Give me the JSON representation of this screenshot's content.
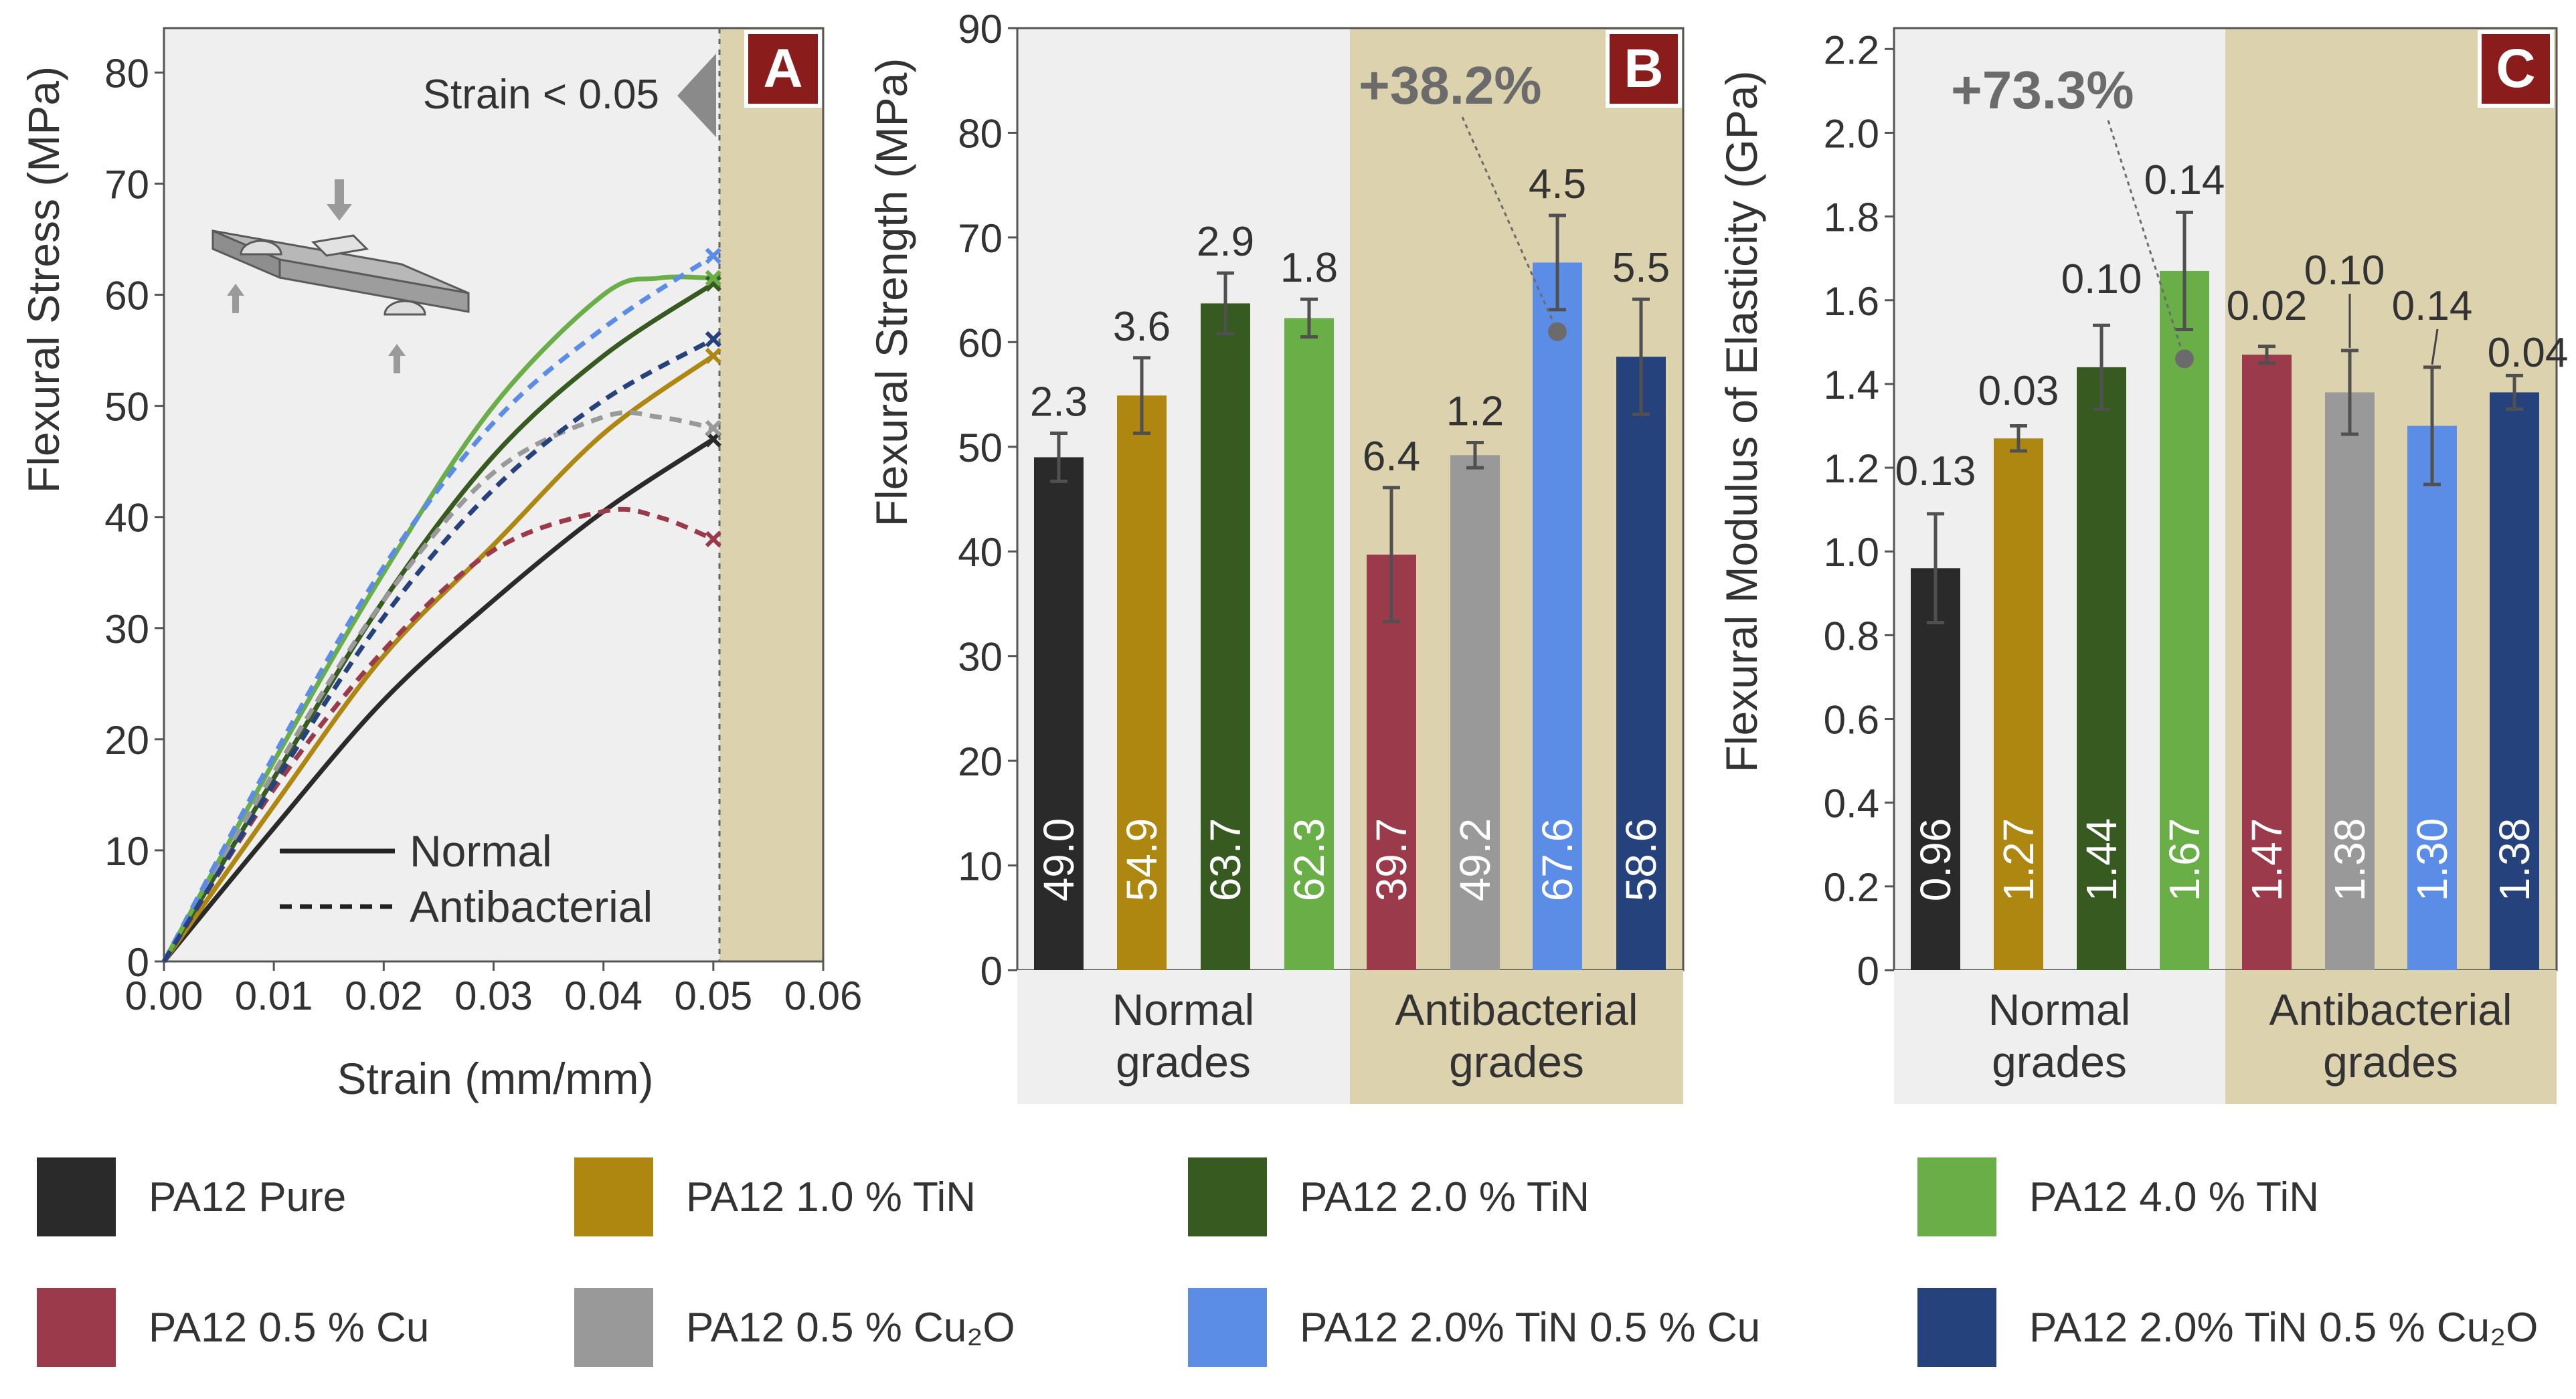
{
  "colors": {
    "pure": "#2a2a2a",
    "tin1": "#ad8710",
    "tin2": "#365a20",
    "tin4": "#6aae48",
    "cu": "#9b3a4a",
    "cu2o": "#999999",
    "tin2cu": "#5b8de6",
    "tin2cu2o": "#26427c",
    "axis": "#444444",
    "panel_bg": "#efefef",
    "antibacterial_bg": "#dcd3ae",
    "label_box": "#8b1c1c",
    "annotation": "#6b6b6b"
  },
  "legend": [
    {
      "label": "PA12 Pure",
      "color": "#2a2a2a"
    },
    {
      "label": "PA12 1.0 % TiN",
      "color": "#ad8710"
    },
    {
      "label": "PA12 2.0 % TiN",
      "color": "#365a20"
    },
    {
      "label": "PA12 4.0 % TiN",
      "color": "#6aae48"
    },
    {
      "label": "PA12 0.5 % Cu",
      "color": "#9b3a4a"
    },
    {
      "label": "PA12 0.5 % Cu₂O",
      "color": "#999999"
    },
    {
      "label": "PA12 2.0% TiN 0.5 % Cu",
      "color": "#5b8de6"
    },
    {
      "label": "PA12 2.0% TiN 0.5 % Cu₂O",
      "color": "#26427c"
    }
  ],
  "chart_data": [
    {
      "panel": "A",
      "type": "line",
      "xlabel": "Strain (mm/mm)",
      "ylabel": "Flexural Stress (MPa)",
      "xlim": [
        0,
        0.06
      ],
      "ylim": [
        0,
        84
      ],
      "xticks": [
        "0.00",
        "0.01",
        "0.02",
        "0.03",
        "0.04",
        "0.05",
        "0.06"
      ],
      "yticks": [
        "0",
        "10",
        "20",
        "30",
        "40",
        "50",
        "60",
        "70",
        "80"
      ],
      "annotation": "Strain < 0.05",
      "line_style_legend": [
        {
          "label": "Normal",
          "style": "solid"
        },
        {
          "label": "Antibacterial",
          "style": "dashed"
        }
      ],
      "series": [
        {
          "name": "PA12 Pure",
          "style": "solid",
          "color": "#2a2a2a",
          "x": [
            0,
            0.01,
            0.02,
            0.03,
            0.04,
            0.05
          ],
          "y": [
            0,
            12,
            23.5,
            32.5,
            40.5,
            47
          ]
        },
        {
          "name": "PA12 1.0 % TiN",
          "style": "solid",
          "color": "#ad8710",
          "x": [
            0,
            0.01,
            0.02,
            0.03,
            0.04,
            0.05
          ],
          "y": [
            0,
            14,
            27.5,
            37.5,
            47.5,
            54.5
          ]
        },
        {
          "name": "PA12 2.0 % TiN",
          "style": "solid",
          "color": "#365a20",
          "x": [
            0,
            0.01,
            0.02,
            0.03,
            0.04,
            0.05
          ],
          "y": [
            0,
            16.5,
            32.5,
            45.5,
            54.5,
            61
          ]
        },
        {
          "name": "PA12 4.0 % TiN",
          "style": "solid",
          "color": "#6aae48",
          "x": [
            0,
            0.01,
            0.02,
            0.03,
            0.04,
            0.045,
            0.05
          ],
          "y": [
            0,
            18,
            35,
            50,
            60,
            61.5,
            61.5
          ]
        },
        {
          "name": "PA12 0.5 % Cu",
          "style": "dashed",
          "color": "#9b3a4a",
          "x": [
            0,
            0.01,
            0.02,
            0.03,
            0.04,
            0.045,
            0.05
          ],
          "y": [
            0,
            15.5,
            28,
            37,
            40.5,
            40,
            38
          ]
        },
        {
          "name": "PA12 0.5 % Cu₂O",
          "style": "dashed",
          "color": "#999999",
          "x": [
            0,
            0.01,
            0.02,
            0.03,
            0.04,
            0.045,
            0.05
          ],
          "y": [
            0,
            17,
            32.5,
            44,
            49,
            49,
            48
          ]
        },
        {
          "name": "PA12 2.0% TiN 0.5 % Cu",
          "style": "dashed",
          "color": "#5b8de6",
          "x": [
            0,
            0.01,
            0.02,
            0.03,
            0.04,
            0.05
          ],
          "y": [
            0,
            18.5,
            35.5,
            48.5,
            57,
            63.5
          ]
        },
        {
          "name": "PA12 2.0% TiN 0.5 % Cu₂O",
          "style": "dashed",
          "color": "#26427c",
          "x": [
            0,
            0.01,
            0.02,
            0.03,
            0.04,
            0.05
          ],
          "y": [
            0,
            16,
            31,
            42.5,
            50.5,
            56
          ]
        }
      ]
    },
    {
      "panel": "B",
      "type": "bar",
      "ylabel": "Flexural Strength (MPa)",
      "ylim": [
        0,
        90
      ],
      "yticks": [
        "0",
        "10",
        "20",
        "30",
        "40",
        "50",
        "60",
        "70",
        "80",
        "90"
      ],
      "groups": [
        {
          "label_line1": "Normal",
          "label_line2": "grades"
        },
        {
          "label_line1": "Antibacterial",
          "label_line2": "grades"
        }
      ],
      "annotation": "+38.2%",
      "annotation_ref_value": 61,
      "annotation_bar_index": 6,
      "categories": [
        "PA12 Pure",
        "PA12 1.0 % TiN",
        "PA12 2.0 % TiN",
        "PA12 4.0 % TiN",
        "PA12 0.5 % Cu",
        "PA12 0.5 % Cu₂O",
        "PA12 2.0% TiN 0.5 % Cu",
        "PA12 2.0% TiN 0.5 % Cu₂O"
      ],
      "values": [
        49.0,
        54.9,
        63.7,
        62.3,
        39.7,
        49.2,
        67.6,
        58.6
      ],
      "value_labels": [
        "49.0",
        "54.9",
        "63.7",
        "62.3",
        "39.7",
        "49.2",
        "67.6",
        "58.6"
      ],
      "errors": [
        2.3,
        3.6,
        2.9,
        1.8,
        6.4,
        1.2,
        4.5,
        5.5
      ],
      "error_labels": [
        "2.3",
        "3.6",
        "2.9",
        "1.8",
        "6.4",
        "1.2",
        "4.5",
        "5.5"
      ]
    },
    {
      "panel": "C",
      "type": "bar",
      "ylabel": "Flexural Modulus of Elasticity (GPa)",
      "ylim": [
        0,
        2.25
      ],
      "yticks": [
        "0",
        "0.2",
        "0.4",
        "0.6",
        "0.8",
        "1.0",
        "1.2",
        "1.4",
        "1.6",
        "1.8",
        "2.0",
        "2.2"
      ],
      "groups": [
        {
          "label_line1": "Normal",
          "label_line2": "grades"
        },
        {
          "label_line1": "Antibacterial",
          "label_line2": "grades"
        }
      ],
      "annotation": "+73.3%",
      "annotation_ref_value": 1.46,
      "annotation_bar_index": 3,
      "categories": [
        "PA12 Pure",
        "PA12 1.0 % TiN",
        "PA12 2.0 % TiN",
        "PA12 4.0 % TiN",
        "PA12 0.5 % Cu",
        "PA12 0.5 % Cu₂O",
        "PA12 2.0% TiN 0.5 % Cu",
        "PA12 2.0% TiN 0.5 % Cu₂O"
      ],
      "values": [
        0.96,
        1.27,
        1.44,
        1.67,
        1.47,
        1.38,
        1.3,
        1.38
      ],
      "value_labels": [
        "0.96",
        "1.27",
        "1.44",
        "1.67",
        "1.47",
        "1.38",
        "1.30",
        "1.38"
      ],
      "errors": [
        0.13,
        0.03,
        0.1,
        0.14,
        0.02,
        0.1,
        0.14,
        0.04
      ],
      "error_labels": [
        "0.13",
        "0.03",
        "0.10",
        "0.14",
        "0.02",
        "0.10",
        "0.14",
        "0.04"
      ]
    }
  ]
}
